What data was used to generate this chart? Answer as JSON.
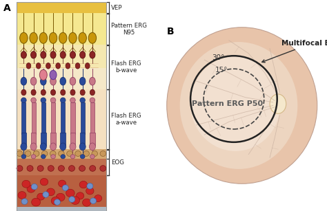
{
  "fig_bg": "#ffffff",
  "panel_a_label": "A",
  "panel_b_label": "B",
  "layer_colors": {
    "top_stripe": "#e8c040",
    "ganglion_bg": "#f5e890",
    "inner_plexiform_bg": "#f5e8b0",
    "inner_nuclear_bg": "#f5e8c8",
    "outer_plexiform_bg": "#f5e8c0",
    "photoreceptor_bg": "#f5e0c0",
    "rpe_bg": "#d4a870",
    "choroid_bg": "#c07050",
    "blood_bg": "#b86040",
    "bottom_strip": "#b0b8c0"
  },
  "neuron_gold": "#c8960a",
  "neuron_dark_red": "#8b2525",
  "neuron_blue": "#2a4a9a",
  "neuron_pink": "#c87888",
  "neuron_purple": "#9060b0",
  "neuron_red_cell": "#cc2020",
  "neuron_blue_cell": "#7090c0",
  "eye_outer": "#e8c4aa",
  "eye_mid": "#edd5c0",
  "eye_inner": "#f2e0d0",
  "optic_disc": "#f0d8b8",
  "vessel_color": "#c8b0a0",
  "circle_30_color": "#222222",
  "circle_15_color": "#444444",
  "label_30": "30°",
  "label_15": "15°",
  "label_p50": "Pattern ERG P50",
  "label_multifocal": "Multifocal ERG"
}
